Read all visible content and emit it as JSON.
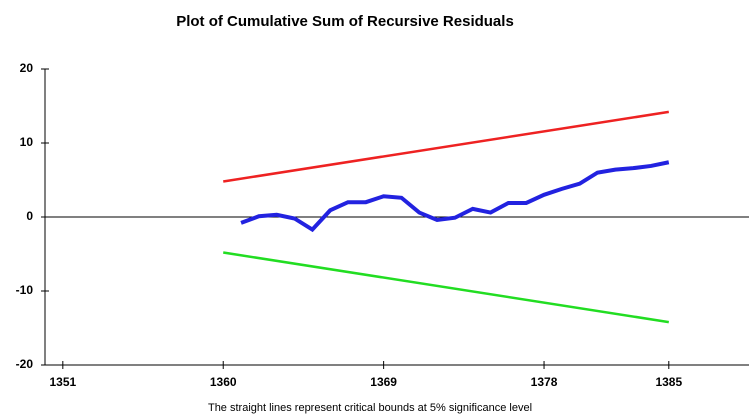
{
  "chart_data": {
    "type": "line",
    "title": "Plot of Cumulative Sum of Recursive Residuals",
    "footnote": "The straight lines represent critical bounds at 5% significance level",
    "xlim": [
      1350,
      1389.5
    ],
    "xticks": [
      1351,
      1360,
      1369,
      1378,
      1385
    ],
    "ylim": [
      -20,
      20
    ],
    "yticks": [
      -20,
      -10,
      0,
      10,
      20
    ],
    "zero_line": true,
    "series": [
      {
        "color": "#ee2222",
        "x": [
          1360,
          1385
        ],
        "values": [
          4.8,
          14.2
        ]
      },
      {
        "color": "#2222e0",
        "x": [
          1361,
          1362,
          1363,
          1364,
          1365,
          1366,
          1367,
          1368,
          1369,
          1370,
          1371,
          1372,
          1373,
          1374,
          1375,
          1376,
          1377,
          1378,
          1379,
          1380,
          1381,
          1382,
          1383,
          1384,
          1385
        ],
        "values": [
          -0.8,
          0.1,
          0.3,
          -0.2,
          -1.7,
          0.9,
          2.0,
          2.0,
          2.8,
          2.6,
          0.6,
          -0.4,
          -0.1,
          1.1,
          0.6,
          1.9,
          1.9,
          3.0,
          3.8,
          4.5,
          6.0,
          6.4,
          6.6,
          6.9,
          7.4
        ]
      },
      {
        "color": "#22dd22",
        "x": [
          1360,
          1385
        ],
        "values": [
          -4.8,
          -14.2
        ]
      }
    ]
  }
}
